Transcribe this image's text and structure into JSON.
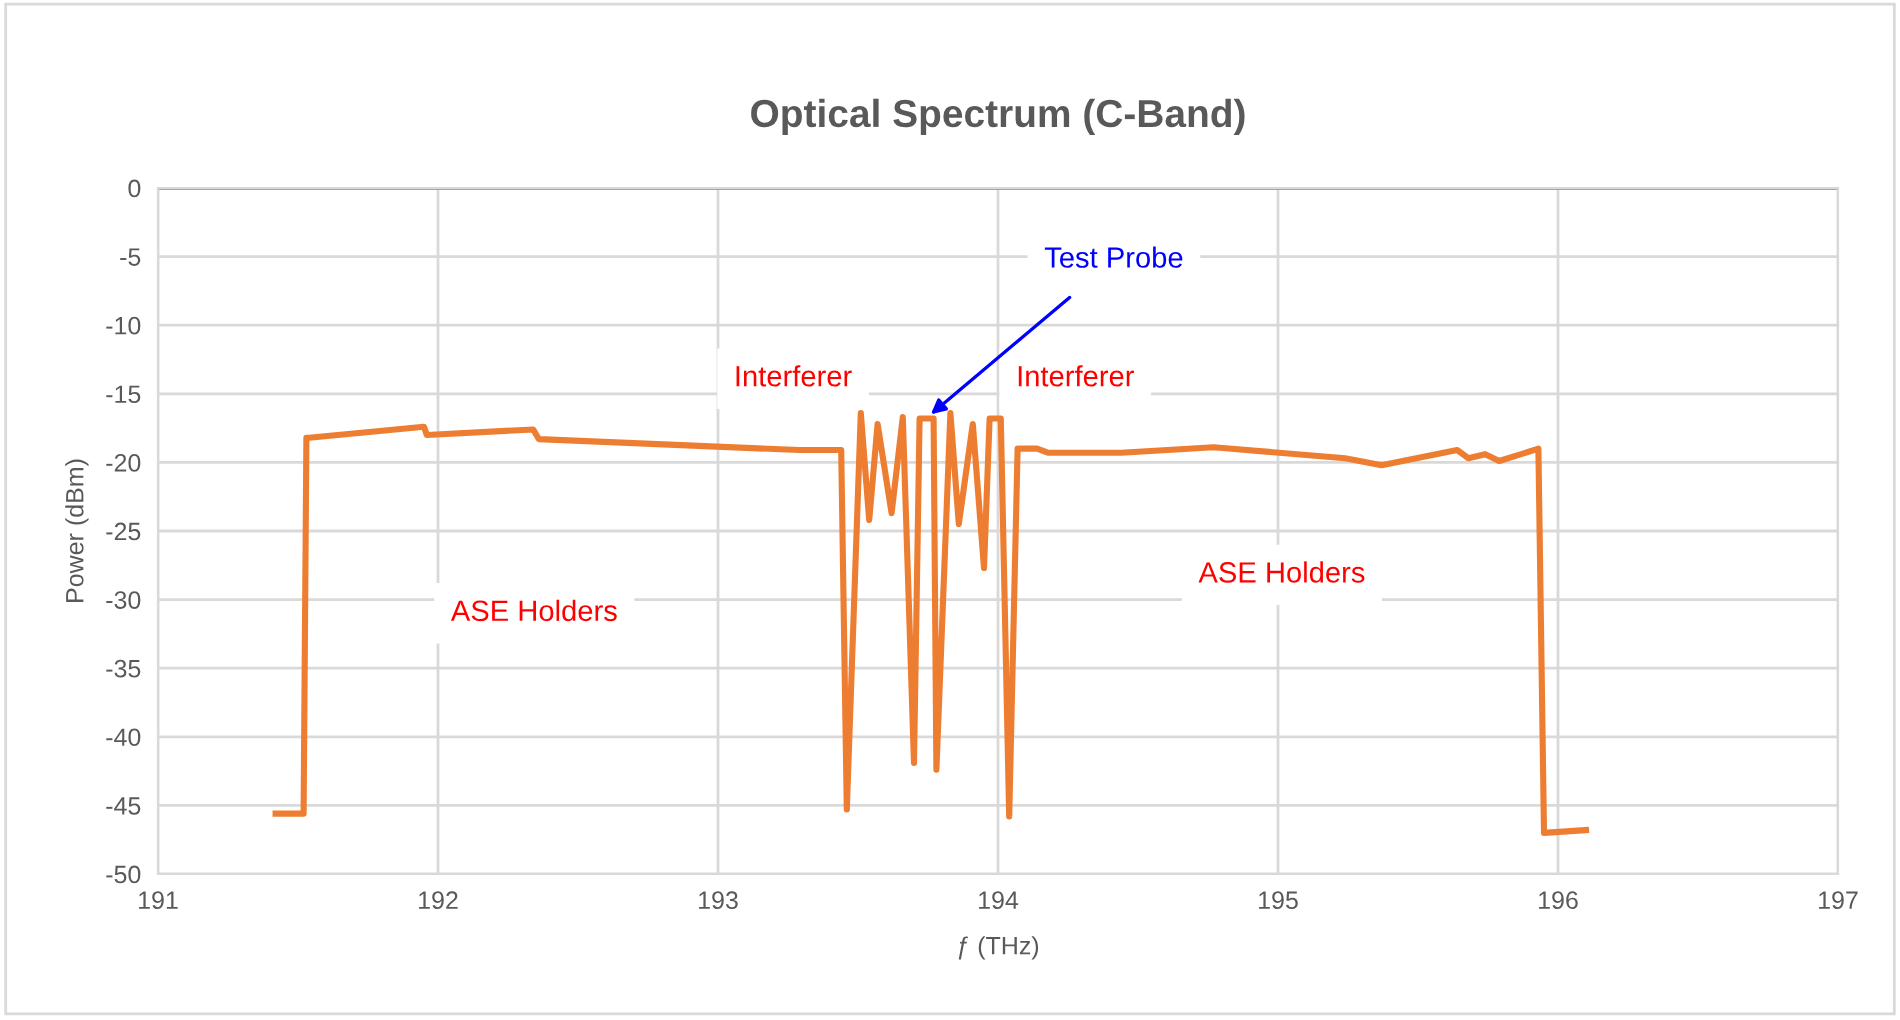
{
  "chart_data": {
    "type": "line",
    "title": "Optical Spectrum (C-Band)",
    "xlabel": "ƒ (THz)",
    "ylabel": "Power (dBm)",
    "xlim": [
      191,
      197
    ],
    "xticks": [
      191,
      192,
      193,
      194,
      195,
      196,
      197
    ],
    "ylim": [
      -50,
      0
    ],
    "yticks": [
      -50,
      -45,
      -40,
      -35,
      -30,
      -25,
      -20,
      -15,
      -10,
      -5,
      0
    ],
    "grid": true,
    "legend": false,
    "marker": "none",
    "line_style": "solid",
    "ref_lines": [
      {
        "axis": "y",
        "value": 0,
        "color": "#5b9bd5"
      }
    ],
    "annotations": [
      "Interferer",
      "Interferer",
      "ASE Holders",
      "ASE Holders",
      {
        "text": "Test Probe",
        "x": 193.76,
        "y": -16.5
      }
    ],
    "series": [
      {
        "color": "#ed7d31",
        "x": [
          191.42,
          191.52,
          191.53,
          191.54,
          191.95,
          191.96,
          192.34,
          192.36,
          193.29,
          193.44,
          193.46,
          193.51,
          193.54,
          193.57,
          193.62,
          193.66,
          193.7,
          193.72,
          193.77,
          193.78,
          193.83,
          193.86,
          193.91,
          193.95,
          193.97,
          194.01,
          194.04,
          194.07,
          194.14,
          194.18,
          194.44,
          194.77,
          195.24,
          195.37,
          195.64,
          195.68,
          195.74,
          195.79,
          195.93,
          195.95,
          196.1
        ],
        "values": [
          -45.6,
          -45.6,
          -18.2,
          -18.2,
          -17.4,
          -18.0,
          -17.6,
          -18.3,
          -19.1,
          -19.1,
          -45.3,
          -16.4,
          -24.2,
          -17.2,
          -23.7,
          -16.7,
          -41.9,
          -16.8,
          -16.8,
          -42.4,
          -16.4,
          -24.5,
          -17.2,
          -27.7,
          -16.8,
          -16.8,
          -45.8,
          -19.0,
          -19.0,
          -19.3,
          -19.3,
          -18.9,
          -19.7,
          -20.2,
          -19.1,
          -19.7,
          -19.4,
          -19.9,
          -19.0,
          -47.0,
          -46.8
        ]
      }
    ]
  }
}
